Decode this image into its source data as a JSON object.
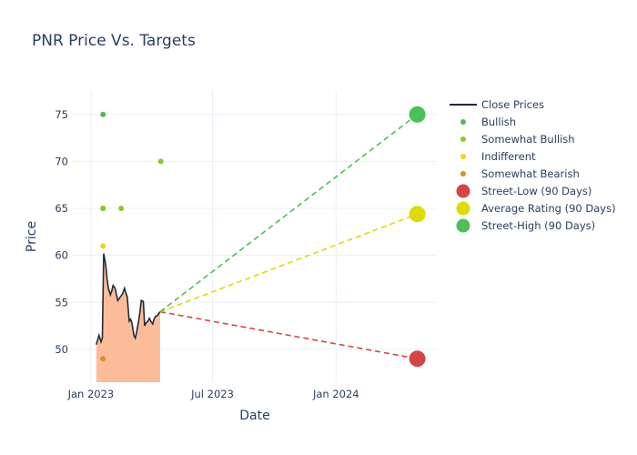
{
  "chart_data": {
    "type": "line",
    "title": "PNR Price Vs. Targets",
    "xlabel": "Date",
    "ylabel": "Price",
    "xlim": [
      "2022-12-05",
      "2024-05-30"
    ],
    "ylim": [
      46.5,
      77.5
    ],
    "x_ticks": [
      {
        "date": "2023-01-01",
        "label": "Jan 2023"
      },
      {
        "date": "2023-07-01",
        "label": "Jul 2023"
      },
      {
        "date": "2024-01-01",
        "label": "Jan 2024"
      }
    ],
    "y_ticks": [
      50,
      55,
      60,
      65,
      70,
      75
    ],
    "grid": true,
    "legend_position": "right",
    "close_prices": {
      "name": "Close Prices",
      "color": "#1f2a38",
      "fill_color": "#fcbc9a",
      "points": [
        [
          "2023-01-09",
          50.5
        ],
        [
          "2023-01-11",
          51.0
        ],
        [
          "2023-01-13",
          51.5
        ],
        [
          "2023-01-16",
          50.8
        ],
        [
          "2023-01-18",
          51.2
        ],
        [
          "2023-01-20",
          60.2
        ],
        [
          "2023-01-23",
          59.0
        ],
        [
          "2023-01-25",
          57.5
        ],
        [
          "2023-01-27",
          56.5
        ],
        [
          "2023-01-30",
          55.8
        ],
        [
          "2023-02-01",
          56.2
        ],
        [
          "2023-02-03",
          56.8
        ],
        [
          "2023-02-06",
          56.5
        ],
        [
          "2023-02-08",
          55.8
        ],
        [
          "2023-02-10",
          55.2
        ],
        [
          "2023-02-13",
          55.5
        ],
        [
          "2023-02-15",
          55.7
        ],
        [
          "2023-02-17",
          55.9
        ],
        [
          "2023-02-20",
          56.5
        ],
        [
          "2023-02-22",
          56.0
        ],
        [
          "2023-02-24",
          55.6
        ],
        [
          "2023-02-27",
          53.0
        ],
        [
          "2023-03-01",
          53.2
        ],
        [
          "2023-03-03",
          52.8
        ],
        [
          "2023-03-06",
          51.5
        ],
        [
          "2023-03-08",
          51.2
        ],
        [
          "2023-03-10",
          51.8
        ],
        [
          "2023-03-13",
          53.0
        ],
        [
          "2023-03-15",
          54.0
        ],
        [
          "2023-03-17",
          55.2
        ],
        [
          "2023-03-20",
          55.1
        ],
        [
          "2023-03-22",
          52.5
        ],
        [
          "2023-03-24",
          52.8
        ],
        [
          "2023-03-27",
          53.0
        ],
        [
          "2023-03-29",
          53.3
        ],
        [
          "2023-03-31",
          53.0
        ],
        [
          "2023-04-03",
          52.7
        ],
        [
          "2023-04-05",
          53.2
        ],
        [
          "2023-04-07",
          53.5
        ],
        [
          "2023-04-10",
          53.6
        ],
        [
          "2023-04-12",
          53.8
        ],
        [
          "2023-04-14",
          54.0
        ]
      ]
    },
    "ratings": [
      {
        "name": "Bullish",
        "color": "#56b75a",
        "points": [
          [
            "2023-01-19",
            75
          ],
          [
            "2023-01-19",
            65
          ]
        ]
      },
      {
        "name": "Somewhat Bullish",
        "color": "#8ac926",
        "points": [
          [
            "2023-04-15",
            70
          ],
          [
            "2023-01-19",
            65
          ],
          [
            "2023-02-15",
            65
          ]
        ]
      },
      {
        "name": "Indifferent",
        "color": "#e8da11",
        "points": [
          [
            "2023-01-19",
            61
          ]
        ]
      },
      {
        "name": "Somewhat Bearish",
        "color": "#d99025",
        "points": [
          [
            "2023-01-19",
            49
          ]
        ]
      }
    ],
    "targets": [
      {
        "name": "Street-Low (90 Days)",
        "color": "#d64545",
        "value": 49,
        "date": "2024-05-01"
      },
      {
        "name": "Average Rating (90 Days)",
        "color": "#dcdc00",
        "value": 64.4,
        "date": "2024-05-01"
      },
      {
        "name": "Street-High (90 Days)",
        "color": "#4cbf56",
        "value": 75,
        "date": "2024-05-01"
      }
    ],
    "projection_start": {
      "date": "2023-04-14",
      "value": 54.0
    }
  }
}
